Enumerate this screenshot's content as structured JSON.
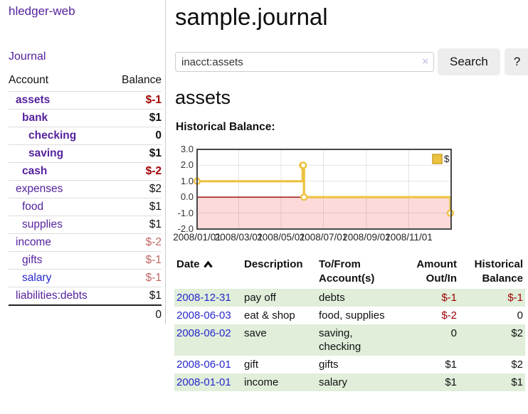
{
  "colors": {
    "accent_purple": "#55229e",
    "link_blue": "#2727cc",
    "neg_strong": "#a00000",
    "neg_weak": "#c06663",
    "row_green": "#e0eeda",
    "chart_line": "#edc240",
    "chart_line_border": "#c9a227",
    "chart_neg_fill": "#fcdada",
    "chart_zero_line": "#990000",
    "chart_border": "#474747"
  },
  "sidebar": {
    "app_title": "hledger-web",
    "nav": [
      {
        "label": "Journal"
      }
    ],
    "accounts_table": {
      "headers": [
        "Account",
        "Balance"
      ],
      "rows": [
        {
          "name": "assets",
          "depth": 1,
          "bold": true,
          "balance": "$-1",
          "balance_style": "neg-strong"
        },
        {
          "name": "bank",
          "depth": 2,
          "bold": true,
          "balance": "$1",
          "balance_style": "pos-strong"
        },
        {
          "name": "checking",
          "depth": 3,
          "bold": true,
          "balance": "0",
          "balance_style": "pos-strong"
        },
        {
          "name": "saving",
          "depth": 3,
          "bold": true,
          "balance": "$1",
          "balance_style": "pos-strong"
        },
        {
          "name": "cash",
          "depth": 2,
          "bold": true,
          "balance": "$-2",
          "balance_style": "neg-strong"
        },
        {
          "name": "expenses",
          "depth": 1,
          "bold": false,
          "balance": "$2",
          "balance_style": "pos"
        },
        {
          "name": "food",
          "depth": 2,
          "bold": false,
          "balance": "$1",
          "balance_style": "pos"
        },
        {
          "name": "supplies",
          "depth": 2,
          "bold": false,
          "balance": "$1",
          "balance_style": "pos"
        },
        {
          "name": "income",
          "depth": 1,
          "bold": false,
          "balance": "$-2",
          "balance_style": "neg-weak"
        },
        {
          "name": "gifts",
          "depth": 2,
          "bold": false,
          "balance": "$-1",
          "balance_style": "neg-weak"
        },
        {
          "name": "salary",
          "depth": 2,
          "bold": false,
          "balance": "$-1",
          "balance_style": "neg-weak",
          "link_color": "blue"
        },
        {
          "name": "liabilities:debts",
          "depth": 1,
          "bold": false,
          "balance": "$1",
          "balance_style": "pos"
        }
      ],
      "total": "0"
    }
  },
  "header": {
    "title": "sample.journal"
  },
  "search": {
    "value": "inacct:assets",
    "clear_icon": "×",
    "button_label": "Search",
    "help_label": "?"
  },
  "account_page": {
    "heading": "assets",
    "chart_label": "Historical Balance:"
  },
  "chart_data": {
    "type": "line",
    "step": true,
    "title": "Historical Balance",
    "x_range": [
      "2008-01-01",
      "2009-01-01"
    ],
    "ylim": [
      -2.0,
      3.0
    ],
    "y_ticks": [
      "3.0",
      "2.0",
      "1.0",
      "0.0",
      "-1.0",
      "-2.0"
    ],
    "x_ticks": [
      "2008/01/01",
      "2008/03/01",
      "2008/05/01",
      "2008/07/01",
      "2008/09/01",
      "2008/11/01"
    ],
    "grid": true,
    "legend_position": "top-right",
    "series": [
      {
        "name": "$",
        "points": [
          [
            "2008-01-01",
            1
          ],
          [
            "2008-06-01",
            2
          ],
          [
            "2008-06-02",
            2
          ],
          [
            "2008-06-03",
            0
          ],
          [
            "2008-12-31",
            -1
          ]
        ]
      }
    ]
  },
  "register_table": {
    "headers": {
      "date": "Date",
      "description": "Description",
      "accounts": "To/From Account(s)",
      "amount": "Amount Out/In",
      "balance": "Historical Balance"
    },
    "rows": [
      {
        "date": "2008-12-31",
        "description": "pay off",
        "accounts": "debts",
        "amount": "$-1",
        "amount_neg": true,
        "balance": "$-1",
        "balance_neg": true
      },
      {
        "date": "2008-06-03",
        "description": "eat & shop",
        "accounts": "food, supplies",
        "amount": "$-2",
        "amount_neg": true,
        "balance": "0",
        "balance_neg": false
      },
      {
        "date": "2008-06-02",
        "description": "save",
        "accounts": "saving, checking",
        "amount": "0",
        "amount_neg": false,
        "balance": "$2",
        "balance_neg": false
      },
      {
        "date": "2008-06-01",
        "description": "gift",
        "accounts": "gifts",
        "amount": "$1",
        "amount_neg": false,
        "balance": "$2",
        "balance_neg": false
      },
      {
        "date": "2008-01-01",
        "description": "income",
        "accounts": "salary",
        "amount": "$1",
        "amount_neg": false,
        "balance": "$1",
        "balance_neg": false
      }
    ]
  }
}
